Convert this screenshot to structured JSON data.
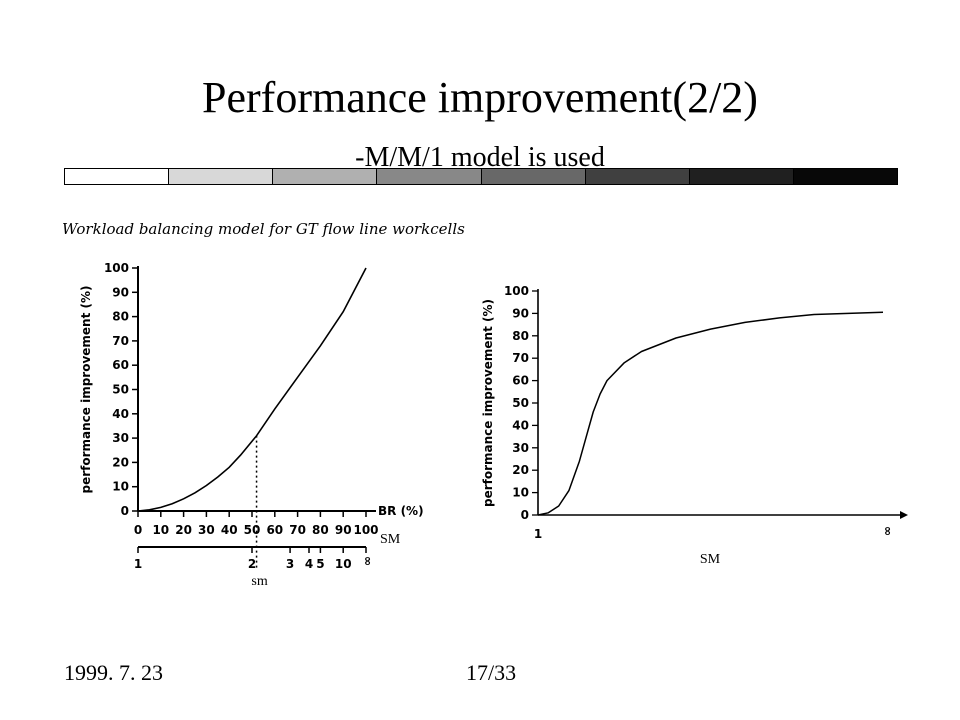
{
  "slide": {
    "title": "Performance improvement(2/2)",
    "subtitle": "-M/M/1 model is used",
    "figure_caption": "Workload balancing model for GT flow line workcells",
    "footer_date": "1999. 7. 23",
    "footer_page": "17/33",
    "bar_colors": [
      "#ffffff",
      "#d8d8d8",
      "#b0b0b0",
      "#888888",
      "#686868",
      "#404040",
      "#202020",
      "#080808"
    ]
  },
  "chart_data": [
    {
      "type": "line",
      "ylabel": "performance improvement (%)",
      "xlabel": "BR (%)",
      "secondary_xlabel": "SM",
      "ylim": [
        0,
        100
      ],
      "xlim": [
        0,
        100
      ],
      "y_ticks": [
        "0",
        "10",
        "20",
        "30",
        "40",
        "50",
        "60",
        "70",
        "80",
        "90",
        "100"
      ],
      "x_ticks": [
        "0",
        "10",
        "20",
        "30",
        "40",
        "50",
        "60",
        "70",
        "80",
        "90",
        "100"
      ],
      "secondary_x_ticks": [
        "1",
        "2",
        "3",
        "4",
        "5",
        "10",
        "∞"
      ],
      "secondary_x_positions": [
        0,
        50,
        66.7,
        75,
        80,
        90,
        100
      ],
      "marker_label": "sm",
      "marker_x": 52,
      "marker_y": 31,
      "series": [
        {
          "x": [
            0,
            5,
            10,
            15,
            20,
            25,
            30,
            35,
            40,
            45,
            52,
            60,
            70,
            80,
            90,
            100
          ],
          "y": [
            0,
            0.5,
            1.5,
            3,
            5,
            7.5,
            10.5,
            14,
            18,
            23,
            31,
            42,
            55,
            68,
            82,
            100
          ]
        }
      ]
    },
    {
      "type": "line",
      "ylabel": "performance improvement (%)",
      "xlabel": "SM",
      "ylim": [
        0,
        100
      ],
      "y_ticks": [
        "0",
        "10",
        "20",
        "30",
        "40",
        "50",
        "60",
        "70",
        "80",
        "90",
        "100"
      ],
      "x_ticks": [
        "1",
        "∞"
      ],
      "series": [
        {
          "x": [
            0,
            3,
            6,
            9,
            12,
            14,
            16,
            18,
            20,
            25,
            30,
            40,
            50,
            60,
            70,
            80,
            90,
            100
          ],
          "y": [
            0,
            1,
            4,
            11,
            24,
            35,
            46,
            54,
            60,
            68,
            73,
            79,
            83,
            86,
            88,
            89.5,
            90,
            90.5
          ]
        }
      ]
    }
  ]
}
